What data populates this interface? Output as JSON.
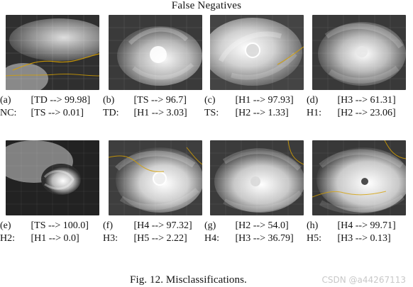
{
  "title": "False Negatives",
  "panels": [
    {
      "label": "(a)",
      "prediction": "[TD --> 99.98]",
      "true_label": "NC:",
      "true_prob": "[TS --> 0.01]"
    },
    {
      "label": "(b)",
      "prediction": "[TS --> 96.7]",
      "true_label": "TD:",
      "true_prob": "[H1 --> 3.03]"
    },
    {
      "label": "(c)",
      "prediction": "[H1 --> 97.93]",
      "true_label": "TS:",
      "true_prob": "[H2 --> 1.33]"
    },
    {
      "label": "(d)",
      "prediction": "[H3 --> 61.31]",
      "true_label": "H1:",
      "true_prob": "[H2 --> 23.06]"
    },
    {
      "label": "(e)",
      "prediction": "[TS --> 100.0]",
      "true_label": "H2:",
      "true_prob": "[H1 --> 0.0]"
    },
    {
      "label": "(f)",
      "prediction": "[H4 --> 97.32]",
      "true_label": "H3:",
      "true_prob": "[H5 --> 2.22]"
    },
    {
      "label": "(g)",
      "prediction": "[H2 --> 54.0]",
      "true_label": "H4:",
      "true_prob": "[H3 --> 36.79]"
    },
    {
      "label": "(h)",
      "prediction": "[H4 --> 99.71]",
      "true_label": "H5:",
      "true_prob": "[H3 --> 0.13]"
    }
  ],
  "figure_caption": "Fig. 12.    Misclassifications.",
  "watermark": "CSDN @a44267113"
}
